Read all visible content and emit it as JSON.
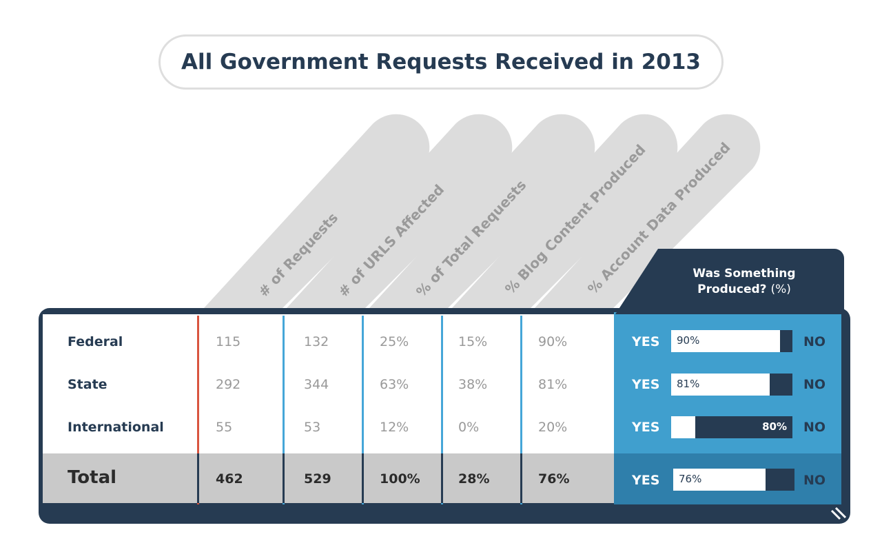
{
  "title": "All Government Requests Received in 2013",
  "colors": {
    "navy": "#263b52",
    "blue": "#409fce",
    "dark_blue": "#2f7fab",
    "red_divider": "#d9553f",
    "blue_divider": "#45a6d8",
    "tab_gray": "#dcdcdc",
    "total_gray": "#c9c9c9"
  },
  "produced_header": {
    "line1": "Was Something",
    "line2": "Produced?",
    "pct": "(%)"
  },
  "yes_label": "YES",
  "no_label": "NO",
  "chart_data": {
    "type": "table",
    "title": "All Government Requests Received in 2013",
    "columns": [
      "# of Requests",
      "# of URLS Affected",
      "% of Total Requests",
      "% Blog Content Produced",
      "% Account Data Produced"
    ],
    "rows": [
      {
        "label": "Federal",
        "values": [
          "115",
          "132",
          "25%",
          "15%",
          "90%"
        ],
        "produced_yes": 90,
        "yes_text": "90%",
        "no_text": ""
      },
      {
        "label": "State",
        "values": [
          "292",
          "344",
          "63%",
          "38%",
          "81%"
        ],
        "produced_yes": 81,
        "yes_text": "81%",
        "no_text": ""
      },
      {
        "label": "International",
        "values": [
          "55",
          "53",
          "12%",
          "0%",
          "20%"
        ],
        "produced_yes": 20,
        "yes_text": "",
        "no_text": "80%"
      }
    ],
    "total": {
      "label": "Total",
      "values": [
        "462",
        "529",
        "100%",
        "28%",
        "76%"
      ],
      "produced_yes": 76,
      "yes_text": "76%",
      "no_text": ""
    }
  }
}
